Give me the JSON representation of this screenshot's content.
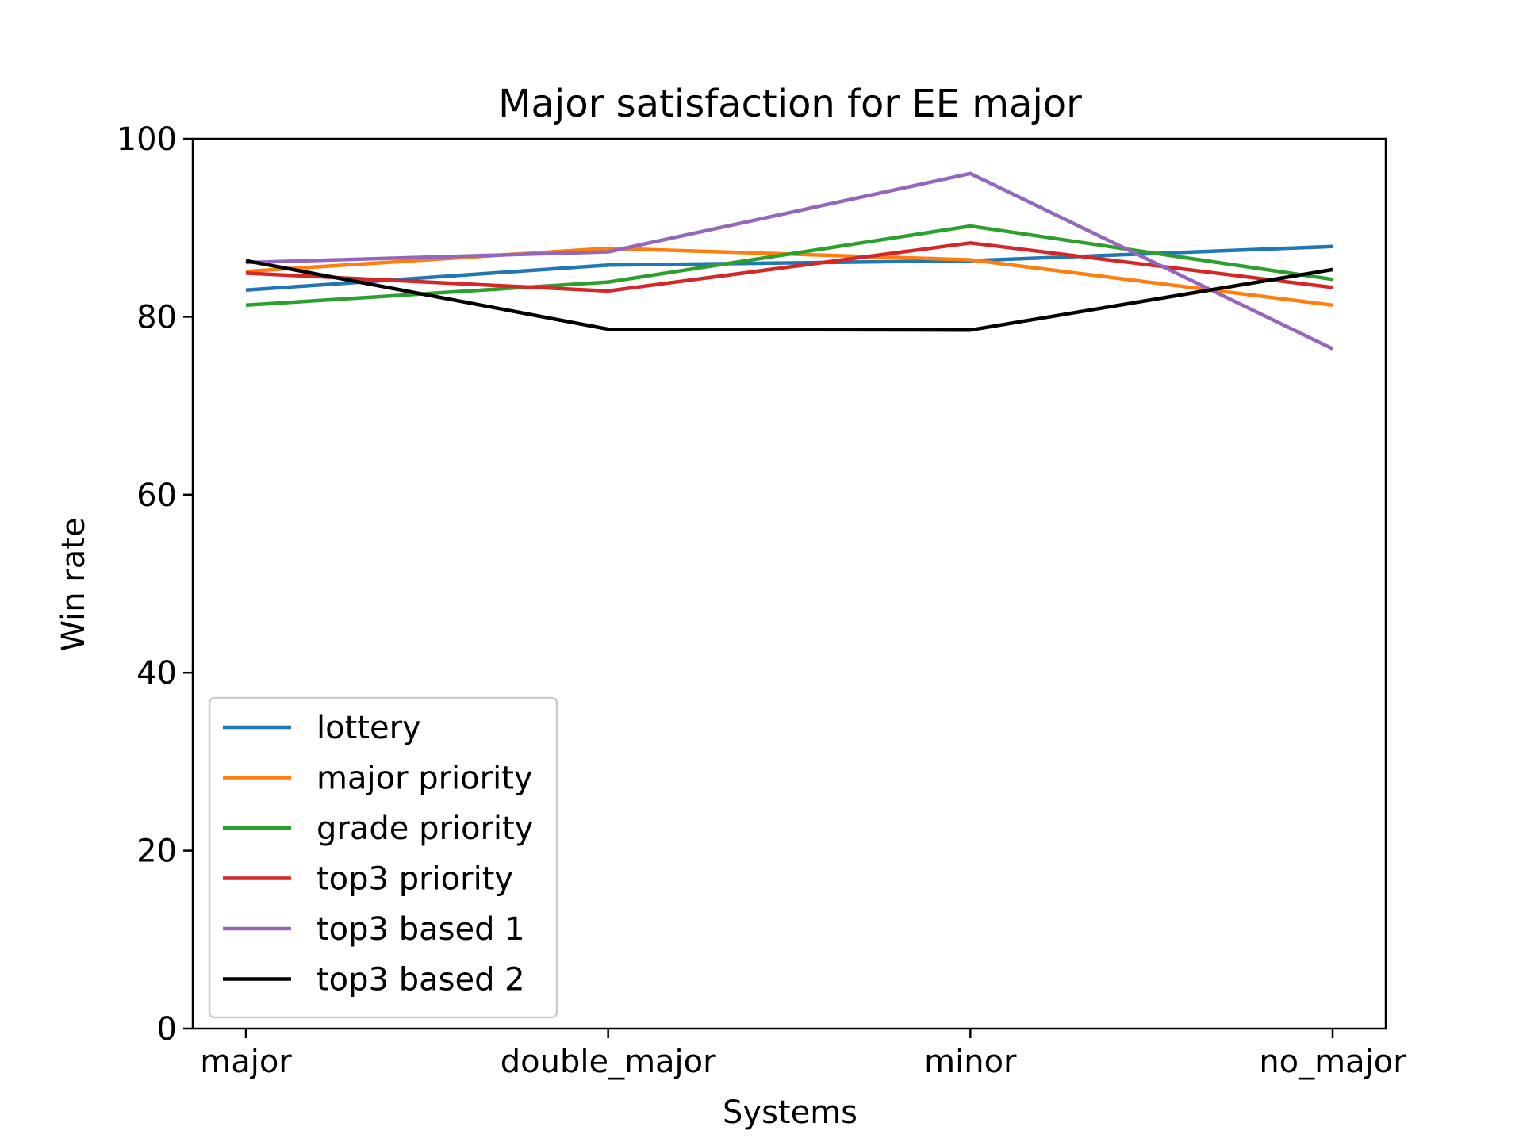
{
  "chart_data": {
    "type": "line",
    "title": "Major satisfaction for EE major",
    "xlabel": "Systems",
    "ylabel": "Win rate",
    "categories": [
      "major",
      "double_major",
      "minor",
      "no_major"
    ],
    "ylim": [
      0,
      100
    ],
    "yticks": [
      0,
      20,
      40,
      60,
      80,
      100
    ],
    "grid": false,
    "legend_position": "lower-left",
    "series": [
      {
        "name": "lottery",
        "color": "#1f77b4",
        "values": [
          83.0,
          85.8,
          86.3,
          87.9
        ]
      },
      {
        "name": "major priority",
        "color": "#ff7f0e",
        "values": [
          85.1,
          87.7,
          86.4,
          81.3
        ]
      },
      {
        "name": "grade priority",
        "color": "#2ca02c",
        "values": [
          81.3,
          83.9,
          90.2,
          84.2
        ]
      },
      {
        "name": "top3 priority",
        "color": "#d62728",
        "values": [
          84.9,
          82.9,
          88.3,
          83.3
        ]
      },
      {
        "name": "top3 based 1",
        "color": "#9467bd",
        "values": [
          86.1,
          87.3,
          96.1,
          76.4
        ]
      },
      {
        "name": "top3 based 2",
        "color": "#000000",
        "values": [
          86.3,
          78.6,
          78.5,
          85.3
        ]
      }
    ]
  }
}
